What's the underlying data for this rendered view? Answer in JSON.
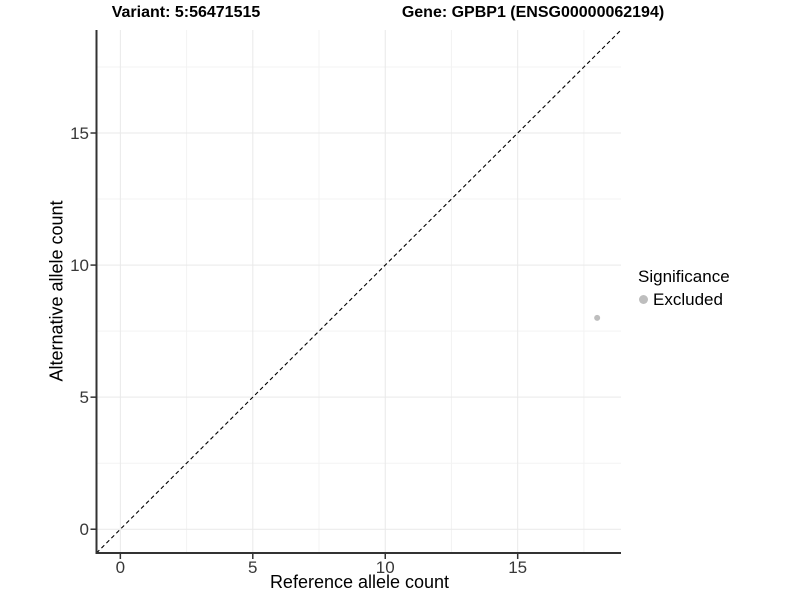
{
  "header": {
    "variant_title": "Variant: 5:56471515",
    "gene_title": "Gene: GPBP1 (ENSG00000062194)"
  },
  "chart_data": {
    "type": "scatter",
    "title_left": "Variant: 5:56471515",
    "title_right": "Gene: GPBP1 (ENSG00000062194)",
    "xlabel": "Reference allele count",
    "ylabel": "Alternative allele count",
    "xlim": [
      -0.9,
      18.9
    ],
    "ylim": [
      -0.9,
      18.9
    ],
    "xticks": [
      0,
      5,
      10,
      15
    ],
    "yticks": [
      0,
      5,
      10,
      15
    ],
    "xticks_minor": [
      2.5,
      7.5,
      12.5,
      17.5
    ],
    "yticks_minor": [
      2.5,
      7.5,
      12.5,
      17.5
    ],
    "grid": true,
    "identity_line": {
      "equation": "y = x",
      "style": "dashed",
      "color": "#000000"
    },
    "series": [
      {
        "name": "Excluded",
        "color": "#bebebe",
        "points": [
          {
            "x": 18,
            "y": 8
          }
        ]
      }
    ],
    "legend": {
      "position": "right",
      "title": "Significance",
      "entries": [
        {
          "label": "Excluded",
          "color": "#bebebe"
        }
      ]
    },
    "colors": {
      "axis_line": "#333333",
      "tick_mark": "#333333",
      "tick_label": "#383838",
      "grid_major": "#e9e9e9",
      "grid_minor": "#f3f3f3",
      "background": "#ffffff"
    }
  }
}
